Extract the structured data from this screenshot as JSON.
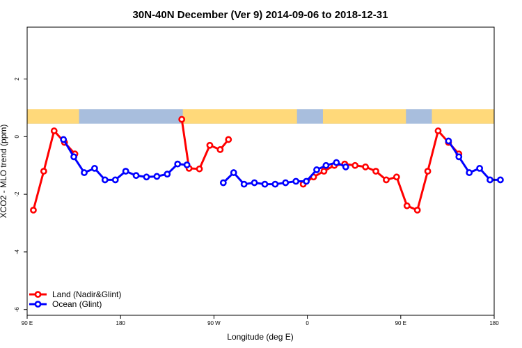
{
  "chart_data": {
    "type": "line",
    "title": "30N-40N December (Ver 9)   2014-09-06 to 2018-12-31",
    "xlabel": "Longitude (deg E)",
    "ylabel": "XCO2 - MLO trend (ppm)",
    "xlim": [
      90,
      540
    ],
    "ylim": [
      -6.2,
      3.8
    ],
    "x_ticks": [
      {
        "value": 90,
        "label": "90 E"
      },
      {
        "value": 180,
        "label": "180"
      },
      {
        "value": 270,
        "label": "90 W"
      },
      {
        "value": 360,
        "label": "0"
      },
      {
        "value": 450,
        "label": "90 E"
      },
      {
        "value": 540,
        "label": "180"
      }
    ],
    "y_ticks": [
      {
        "value": -6,
        "label": "-6"
      },
      {
        "value": -4,
        "label": "-4"
      },
      {
        "value": -2,
        "label": "-2"
      },
      {
        "value": 0,
        "label": "0"
      },
      {
        "value": 2,
        "label": "2"
      }
    ],
    "legend_position": "bottom-left",
    "map_strip": {
      "y_range": [
        0.45,
        0.95
      ],
      "land_color": "#FFD97A",
      "ocean_color": "#A8BEDD",
      "land_segments": [
        [
          90,
          140
        ],
        [
          240,
          350
        ],
        [
          375,
          455
        ],
        [
          480,
          550
        ]
      ]
    },
    "series": [
      {
        "name": "Land (Nadir&Glint)",
        "color": "#ff0000",
        "segments": [
          [
            [
              96,
              -2.55
            ],
            [
              106,
              -1.2
            ],
            [
              116,
              0.2
            ],
            [
              126,
              -0.2
            ],
            [
              136,
              -0.6
            ]
          ],
          [
            [
              239,
              0.6
            ],
            [
              246,
              -1.1
            ],
            [
              256,
              -1.12
            ],
            [
              266,
              -0.3
            ],
            [
              276,
              -0.45
            ],
            [
              284,
              -0.1
            ]
          ],
          [
            [
              356,
              -1.65
            ],
            [
              366,
              -1.4
            ],
            [
              376,
              -1.2
            ],
            [
              386,
              -1.0
            ],
            [
              396,
              -0.95
            ],
            [
              406,
              -1.0
            ],
            [
              416,
              -1.05
            ],
            [
              426,
              -1.2
            ],
            [
              436,
              -1.5
            ],
            [
              446,
              -1.4
            ],
            [
              456,
              -2.4
            ],
            [
              466,
              -2.55
            ],
            [
              476,
              -1.2
            ],
            [
              486,
              0.2
            ],
            [
              496,
              -0.2
            ],
            [
              506,
              -0.6
            ]
          ]
        ]
      },
      {
        "name": "Ocean (Glint)",
        "color": "#0000ff",
        "segments": [
          [
            [
              125,
              -0.1
            ],
            [
              135,
              -0.7
            ],
            [
              145,
              -1.25
            ],
            [
              155,
              -1.1
            ],
            [
              165,
              -1.5
            ],
            [
              175,
              -1.5
            ],
            [
              185,
              -1.2
            ],
            [
              195,
              -1.35
            ],
            [
              205,
              -1.4
            ],
            [
              215,
              -1.38
            ],
            [
              225,
              -1.3
            ],
            [
              235,
              -0.95
            ],
            [
              244,
              -0.98
            ]
          ],
          [
            [
              279,
              -1.6
            ],
            [
              289,
              -1.25
            ],
            [
              299,
              -1.65
            ],
            [
              309,
              -1.6
            ],
            [
              319,
              -1.65
            ],
            [
              329,
              -1.65
            ],
            [
              339,
              -1.6
            ],
            [
              349,
              -1.55
            ],
            [
              359,
              -1.55
            ],
            [
              369,
              -1.15
            ],
            [
              378,
              -1.0
            ],
            [
              388,
              -0.9
            ],
            [
              397,
              -1.05
            ]
          ],
          [
            [
              496,
              -0.15
            ],
            [
              506,
              -0.7
            ],
            [
              516,
              -1.25
            ],
            [
              526,
              -1.1
            ],
            [
              536,
              -1.5
            ],
            [
              546,
              -1.5
            ]
          ]
        ]
      }
    ]
  }
}
